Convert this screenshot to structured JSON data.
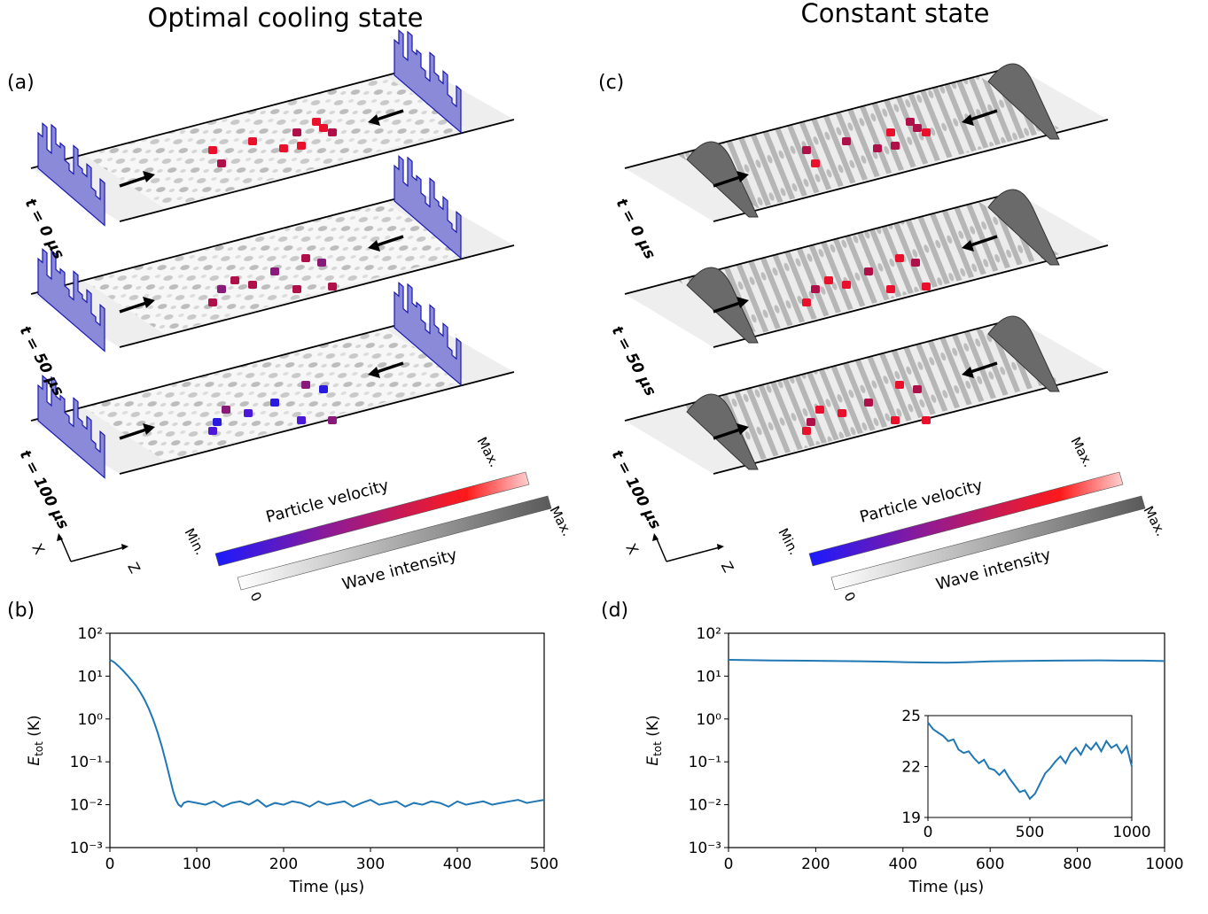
{
  "titles": {
    "left": "Optimal cooling state",
    "right": "Constant state"
  },
  "panel_labels": {
    "a": "(a)",
    "b": "(b)",
    "c": "(c)",
    "d": "(d)"
  },
  "time_labels": [
    "t = 0 μs",
    "t = 50 μs",
    "t = 100 μs"
  ],
  "axes_triad": {
    "x": "X",
    "z": "Z"
  },
  "colorbars": {
    "velocity_label": "Particle velocity",
    "intensity_label": "Wave intensity",
    "min": "Min.",
    "max": "Max.",
    "zero": "0",
    "velocity_colors": [
      "#1a1aff",
      "#8a1a9a",
      "#ff1a1a",
      "#ffd0d0"
    ],
    "intensity_colors": [
      "#ffffff",
      "#5a5a5a"
    ]
  },
  "particle_colors": {
    "hot": "#e8102a",
    "warm": "#b0104a",
    "mid": "#8a1a7a",
    "cold": "#4b17d8",
    "coldest": "#2a1ae0"
  },
  "line_color": "#1f77b4",
  "chart_data": [
    {
      "id": "b",
      "type": "line",
      "title": "",
      "xlabel": "Time (μs)",
      "ylabel": "E_tot (K)",
      "ylabel_main": "E",
      "ylabel_sub": "tot",
      "ylabel_unit": " (K)",
      "yscale": "log",
      "xlim": [
        0,
        500
      ],
      "ylim": [
        0.001,
        100
      ],
      "xticks": [
        0,
        100,
        200,
        300,
        400,
        500
      ],
      "yticks": [
        0.001,
        0.01,
        0.1,
        1,
        10,
        100
      ],
      "ytick_labels": [
        "10⁻³",
        "10⁻²",
        "10⁻¹",
        "10⁰",
        "10¹",
        "10²"
      ],
      "series": [
        {
          "x": [
            0,
            5,
            10,
            15,
            20,
            25,
            30,
            35,
            40,
            45,
            50,
            55,
            60,
            65,
            70,
            73,
            76,
            79,
            82,
            85,
            90,
            100,
            110,
            120,
            130,
            140,
            150,
            160,
            170,
            180,
            190,
            200,
            210,
            220,
            230,
            240,
            250,
            260,
            270,
            280,
            290,
            300,
            310,
            320,
            330,
            340,
            350,
            360,
            370,
            380,
            390,
            400,
            410,
            420,
            430,
            440,
            450,
            460,
            470,
            480,
            490,
            500
          ],
          "y": [
            24,
            21,
            17,
            13.5,
            10.5,
            8,
            6,
            4.2,
            2.8,
            1.7,
            0.95,
            0.48,
            0.22,
            0.09,
            0.035,
            0.02,
            0.013,
            0.01,
            0.009,
            0.011,
            0.012,
            0.011,
            0.01,
            0.012,
            0.009,
            0.011,
            0.012,
            0.01,
            0.013,
            0.009,
            0.011,
            0.01,
            0.012,
            0.011,
            0.009,
            0.012,
            0.01,
            0.011,
            0.012,
            0.009,
            0.011,
            0.013,
            0.01,
            0.011,
            0.012,
            0.009,
            0.011,
            0.01,
            0.012,
            0.011,
            0.009,
            0.012,
            0.01,
            0.011,
            0.012,
            0.01,
            0.011,
            0.012,
            0.013,
            0.011,
            0.012,
            0.013
          ]
        }
      ]
    },
    {
      "id": "d",
      "type": "line",
      "title": "",
      "xlabel": "Time (μs)",
      "ylabel": "E_tot (K)",
      "ylabel_main": "E",
      "ylabel_sub": "tot",
      "ylabel_unit": " (K)",
      "yscale": "log",
      "xlim": [
        0,
        1000
      ],
      "ylim": [
        0.001,
        100
      ],
      "xticks": [
        0,
        200,
        400,
        600,
        800,
        1000
      ],
      "yticks": [
        0.001,
        0.01,
        0.1,
        1,
        10,
        100
      ],
      "ytick_labels": [
        "10⁻³",
        "10⁻²",
        "10⁻¹",
        "10⁰",
        "10¹",
        "10²"
      ],
      "series": [
        {
          "x": [
            0,
            50,
            100,
            150,
            200,
            250,
            300,
            350,
            400,
            450,
            500,
            550,
            600,
            650,
            700,
            750,
            800,
            850,
            900,
            950,
            1000
          ],
          "y": [
            24,
            23.5,
            23.2,
            23,
            22.8,
            22.5,
            22.2,
            21.8,
            21.2,
            20.8,
            20.5,
            21.2,
            22,
            22.5,
            22.8,
            23,
            23.2,
            23.3,
            23,
            23,
            22.5
          ]
        }
      ],
      "inset": {
        "type": "line",
        "xlim": [
          0,
          1000
        ],
        "ylim": [
          19,
          25
        ],
        "xticks": [
          0,
          500,
          1000
        ],
        "yticks": [
          19,
          22,
          25
        ],
        "series": [
          {
            "x": [
              0,
              25,
              50,
              75,
              100,
              125,
              150,
              175,
              200,
              225,
              250,
              275,
              300,
              325,
              350,
              375,
              400,
              425,
              450,
              475,
              500,
              525,
              550,
              575,
              600,
              625,
              650,
              675,
              700,
              725,
              750,
              775,
              800,
              825,
              850,
              875,
              900,
              925,
              950,
              975,
              1000
            ],
            "y": [
              24.6,
              24.2,
              24.0,
              23.8,
              23.5,
              23.6,
              23.0,
              22.8,
              22.9,
              22.5,
              22.2,
              22.4,
              21.9,
              21.8,
              21.5,
              21.8,
              21.3,
              20.9,
              20.5,
              20.6,
              20.1,
              20.4,
              21.0,
              21.6,
              21.9,
              22.3,
              22.6,
              22.2,
              22.8,
              23.1,
              22.7,
              23.3,
              23.0,
              23.4,
              22.9,
              23.5,
              23.1,
              23.3,
              22.8,
              23.2,
              22.0
            ]
          }
        ]
      }
    }
  ]
}
